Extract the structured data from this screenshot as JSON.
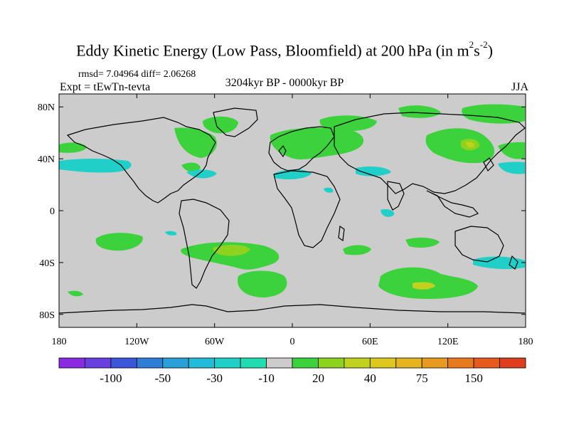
{
  "header": {
    "title_main": "Eddy Kinetic Energy (Low Pass, Bloomfield) at 200 hPa (in m",
    "title_sup1": "2",
    "title_mid": "s",
    "title_sup2": "-2",
    "title_end": ")",
    "stats": "rmsd= 7.04964 diff= 2.06268",
    "experiment": "Expt = tEwTn-tevta",
    "period": "3204kyr BP - 0000kyr BP",
    "season": "JJA"
  },
  "axes": {
    "lat_labels": [
      "80N",
      "40N",
      "0",
      "40S",
      "80S"
    ],
    "lat_values": [
      80,
      40,
      0,
      -40,
      -80
    ],
    "lon_labels": [
      "180",
      "120W",
      "60W",
      "0",
      "60E",
      "120E",
      "180"
    ],
    "lon_values": [
      -180,
      -120,
      -60,
      0,
      60,
      120,
      180
    ],
    "lat_range": [
      -90,
      90
    ],
    "lon_range": [
      -180,
      180
    ]
  },
  "colorbar": {
    "colors": [
      "#8a2be2",
      "#6a3fe0",
      "#3b56d8",
      "#2e7ed8",
      "#2aa0d8",
      "#22bcd8",
      "#20d0c8",
      "#20dcb0",
      "#cccccc",
      "#3cd23c",
      "#8cd21e",
      "#c0d21e",
      "#dcc81e",
      "#e6b41e",
      "#e89a1e",
      "#e87a1e",
      "#e65a1e",
      "#e03c1e"
    ],
    "labels": [
      "-100",
      "-50",
      "-30",
      "-10",
      "20",
      "40",
      "75",
      "150"
    ],
    "label_boundary_index": [
      2,
      4,
      6,
      8,
      10,
      12,
      14,
      16
    ]
  },
  "map": {
    "background": "#cccccc",
    "positive_color": "#3cd23c",
    "positive_strong_color": "#8cd21e",
    "positive_peak_color": "#c0d21e",
    "negative_color": "#20d0c8"
  }
}
